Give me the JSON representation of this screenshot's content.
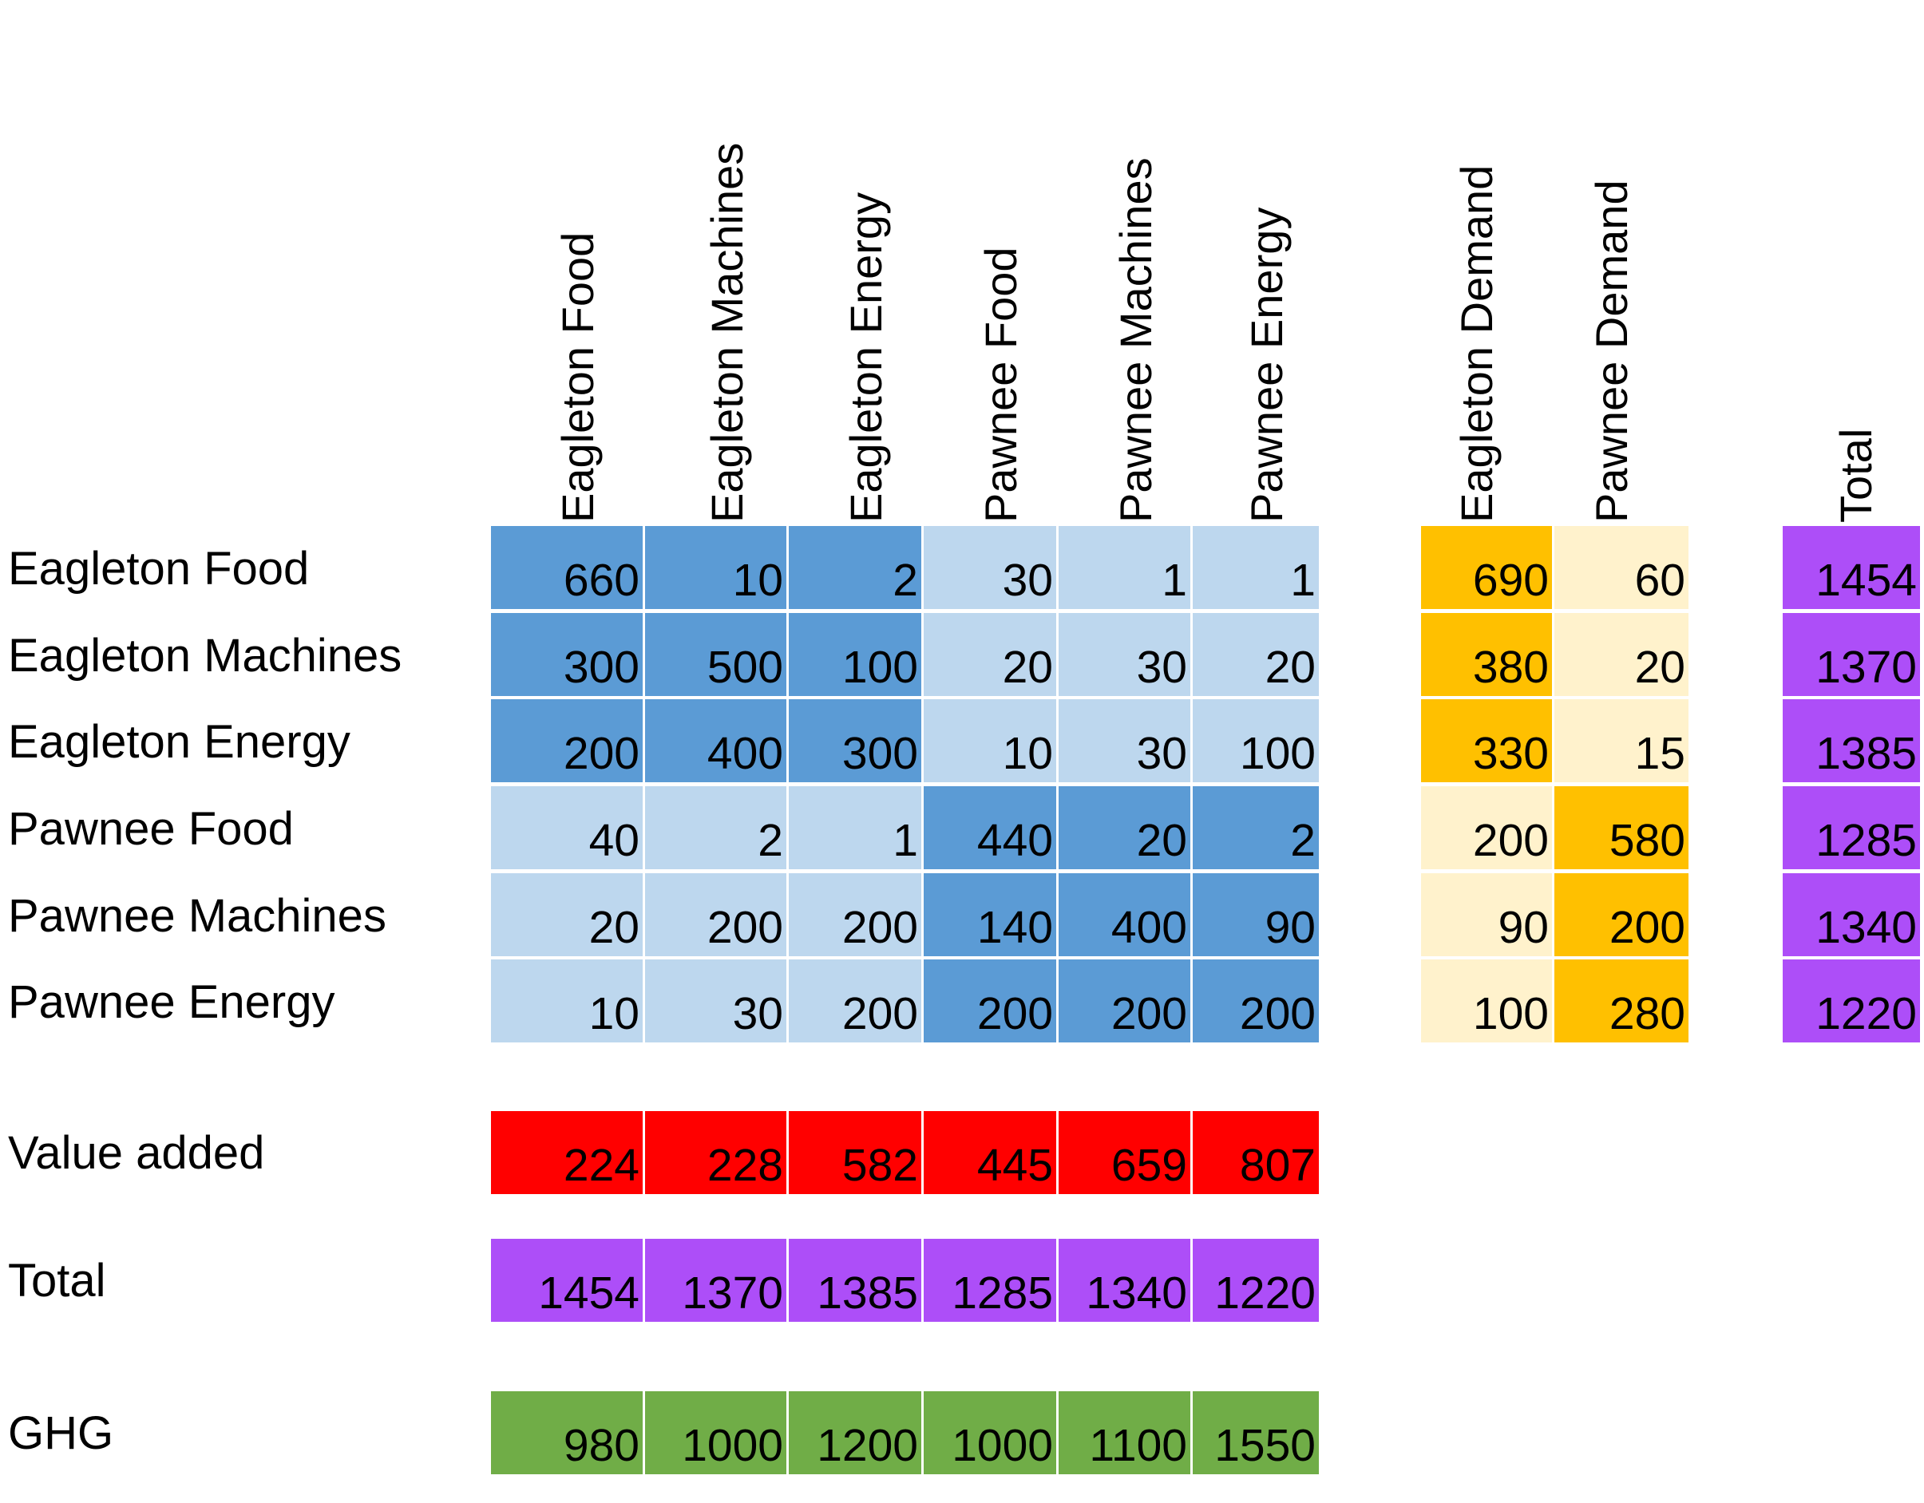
{
  "column_headers": [
    "Eagleton Food",
    "Eagleton Machines",
    "Eagleton Energy",
    "Pawnee Food",
    "Pawnee Machines",
    "Pawnee Energy"
  ],
  "demand_headers": [
    "Eagleton Demand",
    "Pawnee Demand"
  ],
  "total_header": "Total",
  "matrix": {
    "rows": [
      {
        "label": "Eagleton Food",
        "values": [
          "660",
          "10",
          "2",
          "30",
          "1",
          "1"
        ],
        "demand": [
          "690",
          "60"
        ],
        "total": "1454"
      },
      {
        "label": "Eagleton Machines",
        "values": [
          "300",
          "500",
          "100",
          "20",
          "30",
          "20"
        ],
        "demand": [
          "380",
          "20"
        ],
        "total": "1370"
      },
      {
        "label": "Eagleton Energy",
        "values": [
          "200",
          "400",
          "300",
          "10",
          "30",
          "100"
        ],
        "demand": [
          "330",
          "15"
        ],
        "total": "1385"
      },
      {
        "label": "Pawnee Food",
        "values": [
          "40",
          "2",
          "1",
          "440",
          "20",
          "2"
        ],
        "demand": [
          "200",
          "580"
        ],
        "total": "1285"
      },
      {
        "label": "Pawnee Machines",
        "values": [
          "20",
          "200",
          "200",
          "140",
          "400",
          "90"
        ],
        "demand": [
          "90",
          "200"
        ],
        "total": "1340"
      },
      {
        "label": "Pawnee Energy",
        "values": [
          "10",
          "30",
          "200",
          "200",
          "200",
          "200"
        ],
        "demand": [
          "100",
          "280"
        ],
        "total": "1220"
      }
    ]
  },
  "value_added": {
    "label": "Value added",
    "values": [
      "224",
      "228",
      "582",
      "445",
      "659",
      "807"
    ]
  },
  "totals_row": {
    "label": "Total",
    "values": [
      "1454",
      "1370",
      "1385",
      "1285",
      "1340",
      "1220"
    ]
  },
  "ghg": {
    "label": "GHG",
    "values": [
      "980",
      "1000",
      "1200",
      "1000",
      "1100",
      "1550"
    ]
  },
  "colors": {
    "dark_blue": "#5b9bd5",
    "light_blue": "#bdd7ee",
    "dark_orange": "#ffc000",
    "light_orange": "#fff2cc",
    "purple": "#ad4ef8",
    "red": "#ff0000",
    "green": "#70ad47"
  }
}
